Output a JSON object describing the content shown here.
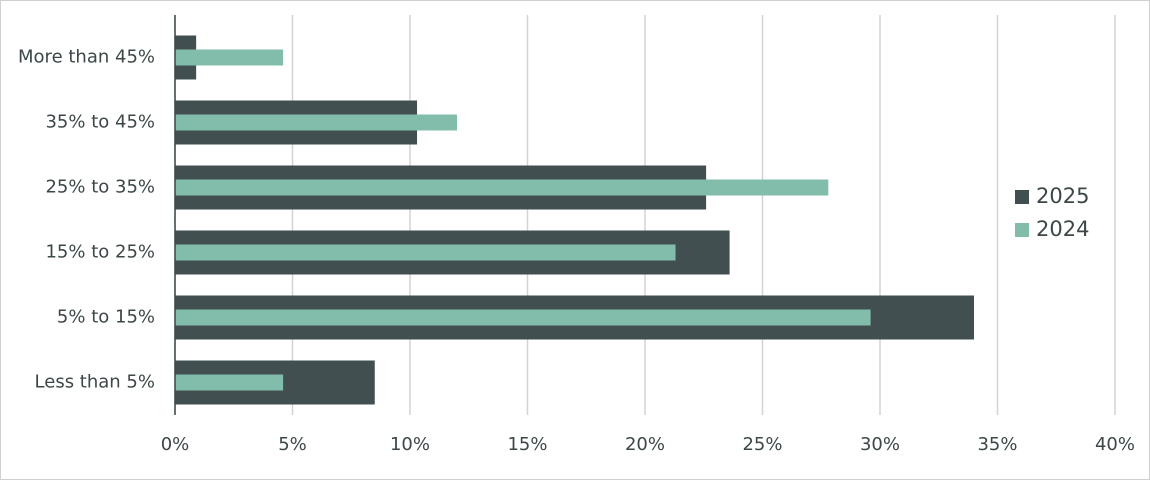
{
  "chart_data": {
    "type": "bar",
    "orientation": "horizontal",
    "categories": [
      "More than 45%",
      "35% to 45%",
      "25% to 35%",
      "15% to 25%",
      "5% to 15%",
      "Less than 5%"
    ],
    "series": [
      {
        "name": "2025",
        "color": "#414f51",
        "values": [
          0.9,
          10.3,
          22.6,
          23.6,
          34.0,
          8.5
        ]
      },
      {
        "name": "2024",
        "color": "#82bcab",
        "values": [
          4.6,
          12.0,
          27.8,
          21.3,
          29.6,
          4.6
        ]
      }
    ],
    "xlim": [
      0,
      40
    ],
    "xticks": [
      {
        "value": 0,
        "label": "0%"
      },
      {
        "value": 5,
        "label": "5%"
      },
      {
        "value": 10,
        "label": "10%"
      },
      {
        "value": 15,
        "label": "15%"
      },
      {
        "value": 20,
        "label": "20%"
      },
      {
        "value": 25,
        "label": "25%"
      },
      {
        "value": 30,
        "label": "30%"
      },
      {
        "value": 35,
        "label": "35%"
      },
      {
        "value": 40,
        "label": "40%"
      }
    ],
    "grid": true,
    "legend": "right"
  }
}
